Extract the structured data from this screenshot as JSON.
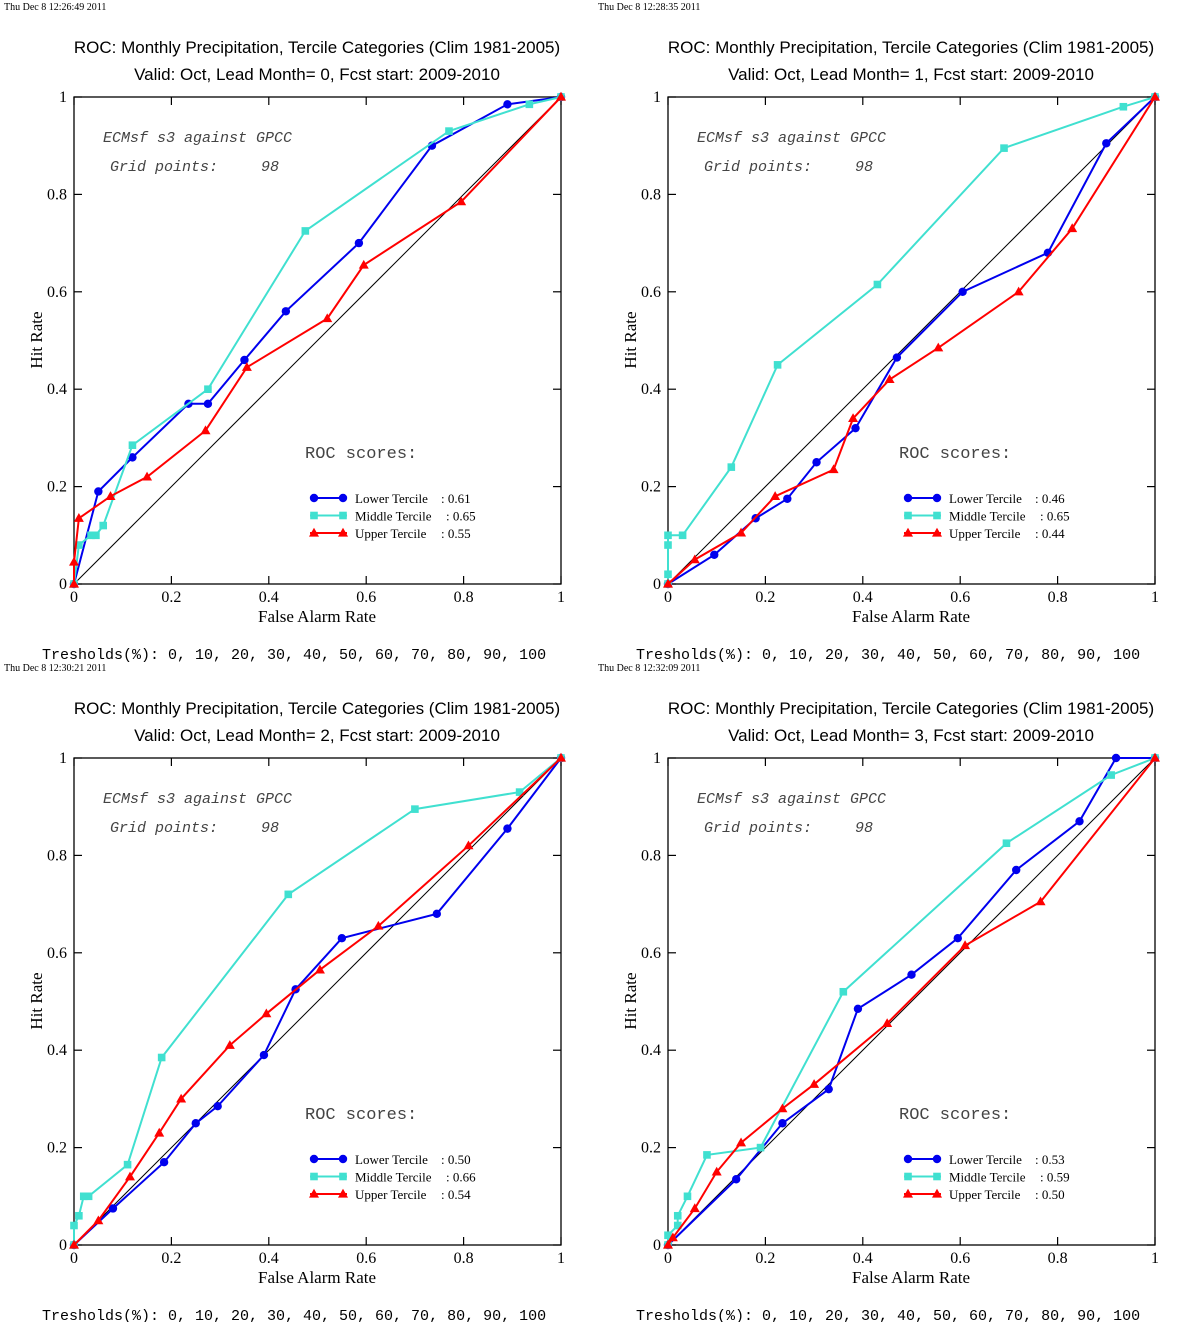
{
  "colors": {
    "lower": "#0000ee",
    "middle": "#40e0d0",
    "upper": "#ff0000",
    "diagonal": "#000000"
  },
  "series_names": [
    "Lower Tercile",
    "Middle Tercile",
    "Upper Tercile"
  ],
  "text": {
    "roc_scores_label": "ROC scores:",
    "dataset_line": "ECMsf s3 against GPCC",
    "grid_points_label": "Grid points:",
    "grid_points_value": "98",
    "thresholds_line": "Tresholds(%): 0, 10, 20, 30, 40, 50, 60, 70, 80, 90, 100"
  },
  "chart_data": [
    {
      "type": "line",
      "timestamp": "Thu Dec  8 12:26:49 2011",
      "title": "ROC: Monthly Precipitation, Tercile Categories (Clim 1981-2005)",
      "subtitle": "Valid: Oct, Lead Month= 0, Fcst start: 2009-2010",
      "xlabel": "False Alarm Rate",
      "ylabel": "Hit Rate",
      "xlim": [
        0,
        1
      ],
      "ylim": [
        0,
        1
      ],
      "xticks": [
        "0",
        "0.2",
        "0.4",
        "0.6",
        "0.8",
        "1"
      ],
      "yticks": [
        "0",
        "0.2",
        "0.4",
        "0.6",
        "0.8",
        "1"
      ],
      "grid": false,
      "legend": "bottom-right",
      "series": [
        {
          "name": "Lower Tercile",
          "score": "0.61",
          "marker": "circle",
          "points": [
            [
              0,
              0
            ],
            [
              0.05,
              0.19
            ],
            [
              0.12,
              0.26
            ],
            [
              0.235,
              0.37
            ],
            [
              0.275,
              0.37
            ],
            [
              0.35,
              0.46
            ],
            [
              0.435,
              0.56
            ],
            [
              0.585,
              0.7
            ],
            [
              0.735,
              0.9
            ],
            [
              0.89,
              0.985
            ],
            [
              1,
              1
            ]
          ]
        },
        {
          "name": "Middle Tercile",
          "score": "0.65",
          "marker": "square",
          "points": [
            [
              0,
              0
            ],
            [
              0.01,
              0.08
            ],
            [
              0.035,
              0.1
            ],
            [
              0.045,
              0.1
            ],
            [
              0.06,
              0.12
            ],
            [
              0.12,
              0.285
            ],
            [
              0.275,
              0.4
            ],
            [
              0.475,
              0.725
            ],
            [
              0.77,
              0.93
            ],
            [
              0.935,
              0.985
            ],
            [
              1,
              1
            ]
          ]
        },
        {
          "name": "Upper Tercile",
          "score": "0.55",
          "marker": "triangle",
          "points": [
            [
              0,
              0
            ],
            [
              0.0,
              0.045
            ],
            [
              0.01,
              0.135
            ],
            [
              0.075,
              0.18
            ],
            [
              0.15,
              0.22
            ],
            [
              0.27,
              0.315
            ],
            [
              0.355,
              0.445
            ],
            [
              0.52,
              0.545
            ],
            [
              0.595,
              0.655
            ],
            [
              0.795,
              0.785
            ],
            [
              1,
              1
            ]
          ]
        }
      ]
    },
    {
      "type": "line",
      "timestamp": "Thu Dec  8 12:28:35 2011",
      "title": "ROC: Monthly Precipitation, Tercile Categories (Clim 1981-2005)",
      "subtitle": "Valid: Oct, Lead Month= 1, Fcst start: 2009-2010",
      "xlabel": "False Alarm Rate",
      "ylabel": "Hit Rate",
      "xlim": [
        0,
        1
      ],
      "ylim": [
        0,
        1
      ],
      "xticks": [
        "0",
        "0.2",
        "0.4",
        "0.6",
        "0.8",
        "1"
      ],
      "yticks": [
        "0",
        "0.2",
        "0.4",
        "0.6",
        "0.8",
        "1"
      ],
      "grid": false,
      "legend": "bottom-right",
      "series": [
        {
          "name": "Lower Tercile",
          "score": "0.46",
          "marker": "circle",
          "points": [
            [
              0,
              0
            ],
            [
              0.095,
              0.06
            ],
            [
              0.18,
              0.135
            ],
            [
              0.245,
              0.175
            ],
            [
              0.305,
              0.25
            ],
            [
              0.385,
              0.32
            ],
            [
              0.47,
              0.465
            ],
            [
              0.605,
              0.6
            ],
            [
              0.78,
              0.68
            ],
            [
              0.9,
              0.905
            ],
            [
              1,
              1
            ]
          ]
        },
        {
          "name": "Middle Tercile",
          "score": "0.65",
          "marker": "square",
          "points": [
            [
              0,
              0
            ],
            [
              0,
              0.02
            ],
            [
              0,
              0.08
            ],
            [
              0,
              0.1
            ],
            [
              0.03,
              0.1
            ],
            [
              0.13,
              0.24
            ],
            [
              0.225,
              0.45
            ],
            [
              0.43,
              0.615
            ],
            [
              0.69,
              0.895
            ],
            [
              0.935,
              0.98
            ],
            [
              1,
              1
            ]
          ]
        },
        {
          "name": "Upper Tercile",
          "score": "0.44",
          "marker": "triangle",
          "points": [
            [
              0,
              0
            ],
            [
              0.055,
              0.05
            ],
            [
              0.15,
              0.105
            ],
            [
              0.22,
              0.18
            ],
            [
              0.34,
              0.235
            ],
            [
              0.38,
              0.34
            ],
            [
              0.455,
              0.42
            ],
            [
              0.555,
              0.485
            ],
            [
              0.72,
              0.6
            ],
            [
              0.83,
              0.73
            ],
            [
              1,
              1
            ]
          ]
        }
      ]
    },
    {
      "type": "line",
      "timestamp": "Thu Dec  8 12:30:21 2011",
      "title": "ROC: Monthly Precipitation, Tercile Categories (Clim 1981-2005)",
      "subtitle": "Valid: Oct, Lead Month= 2, Fcst start: 2009-2010",
      "xlabel": "False Alarm Rate",
      "ylabel": "Hit Rate",
      "xlim": [
        0,
        1
      ],
      "ylim": [
        0,
        1
      ],
      "xticks": [
        "0",
        "0.2",
        "0.4",
        "0.6",
        "0.8",
        "1"
      ],
      "yticks": [
        "0",
        "0.2",
        "0.4",
        "0.6",
        "0.8",
        "1"
      ],
      "grid": false,
      "legend": "bottom-right",
      "series": [
        {
          "name": "Lower Tercile",
          "score": "0.50",
          "marker": "circle",
          "points": [
            [
              0,
              0
            ],
            [
              0.08,
              0.075
            ],
            [
              0.185,
              0.17
            ],
            [
              0.25,
              0.25
            ],
            [
              0.295,
              0.285
            ],
            [
              0.39,
              0.39
            ],
            [
              0.455,
              0.525
            ],
            [
              0.55,
              0.63
            ],
            [
              0.745,
              0.68
            ],
            [
              0.89,
              0.855
            ],
            [
              1,
              1
            ]
          ]
        },
        {
          "name": "Middle Tercile",
          "score": "0.66",
          "marker": "square",
          "points": [
            [
              0,
              0
            ],
            [
              0,
              0.04
            ],
            [
              0.01,
              0.06
            ],
            [
              0.02,
              0.1
            ],
            [
              0.03,
              0.1
            ],
            [
              0.11,
              0.165
            ],
            [
              0.18,
              0.385
            ],
            [
              0.44,
              0.72
            ],
            [
              0.7,
              0.895
            ],
            [
              0.915,
              0.93
            ],
            [
              1,
              1
            ]
          ]
        },
        {
          "name": "Upper Tercile",
          "score": "0.54",
          "marker": "triangle",
          "points": [
            [
              0,
              0
            ],
            [
              0.05,
              0.05
            ],
            [
              0.115,
              0.14
            ],
            [
              0.175,
              0.23
            ],
            [
              0.22,
              0.3
            ],
            [
              0.32,
              0.41
            ],
            [
              0.395,
              0.475
            ],
            [
              0.505,
              0.565
            ],
            [
              0.625,
              0.655
            ],
            [
              0.81,
              0.82
            ],
            [
              1,
              1
            ]
          ]
        }
      ]
    },
    {
      "type": "line",
      "timestamp": "Thu Dec  8 12:32:09 2011",
      "title": "ROC: Monthly Precipitation, Tercile Categories (Clim 1981-2005)",
      "subtitle": "Valid: Oct, Lead Month= 3, Fcst start: 2009-2010",
      "xlabel": "False Alarm Rate",
      "ylabel": "Hit Rate",
      "xlim": [
        0,
        1
      ],
      "ylim": [
        0,
        1
      ],
      "xticks": [
        "0",
        "0.2",
        "0.4",
        "0.6",
        "0.8",
        "1"
      ],
      "yticks": [
        "0",
        "0.2",
        "0.4",
        "0.6",
        "0.8",
        "1"
      ],
      "grid": false,
      "legend": "bottom-right",
      "series": [
        {
          "name": "Lower Tercile",
          "score": "0.53",
          "marker": "circle",
          "points": [
            [
              0,
              0
            ],
            [
              0.14,
              0.135
            ],
            [
              0.235,
              0.25
            ],
            [
              0.33,
              0.32
            ],
            [
              0.39,
              0.485
            ],
            [
              0.5,
              0.555
            ],
            [
              0.595,
              0.63
            ],
            [
              0.715,
              0.77
            ],
            [
              0.845,
              0.87
            ],
            [
              0.92,
              1.0
            ],
            [
              1,
              1
            ]
          ]
        },
        {
          "name": "Middle Tercile",
          "score": "0.59",
          "marker": "square",
          "points": [
            [
              0,
              0
            ],
            [
              0,
              0.02
            ],
            [
              0.02,
              0.04
            ],
            [
              0.02,
              0.06
            ],
            [
              0.04,
              0.1
            ],
            [
              0.08,
              0.185
            ],
            [
              0.19,
              0.2
            ],
            [
              0.36,
              0.52
            ],
            [
              0.695,
              0.825
            ],
            [
              0.91,
              0.965
            ],
            [
              1,
              1
            ]
          ]
        },
        {
          "name": "Upper Tercile",
          "score": "0.50",
          "marker": "triangle",
          "points": [
            [
              0,
              0
            ],
            [
              0.01,
              0.015
            ],
            [
              0.055,
              0.075
            ],
            [
              0.1,
              0.15
            ],
            [
              0.15,
              0.21
            ],
            [
              0.235,
              0.28
            ],
            [
              0.3,
              0.33
            ],
            [
              0.45,
              0.455
            ],
            [
              0.61,
              0.615
            ],
            [
              0.765,
              0.705
            ],
            [
              1,
              1
            ]
          ]
        }
      ]
    }
  ]
}
